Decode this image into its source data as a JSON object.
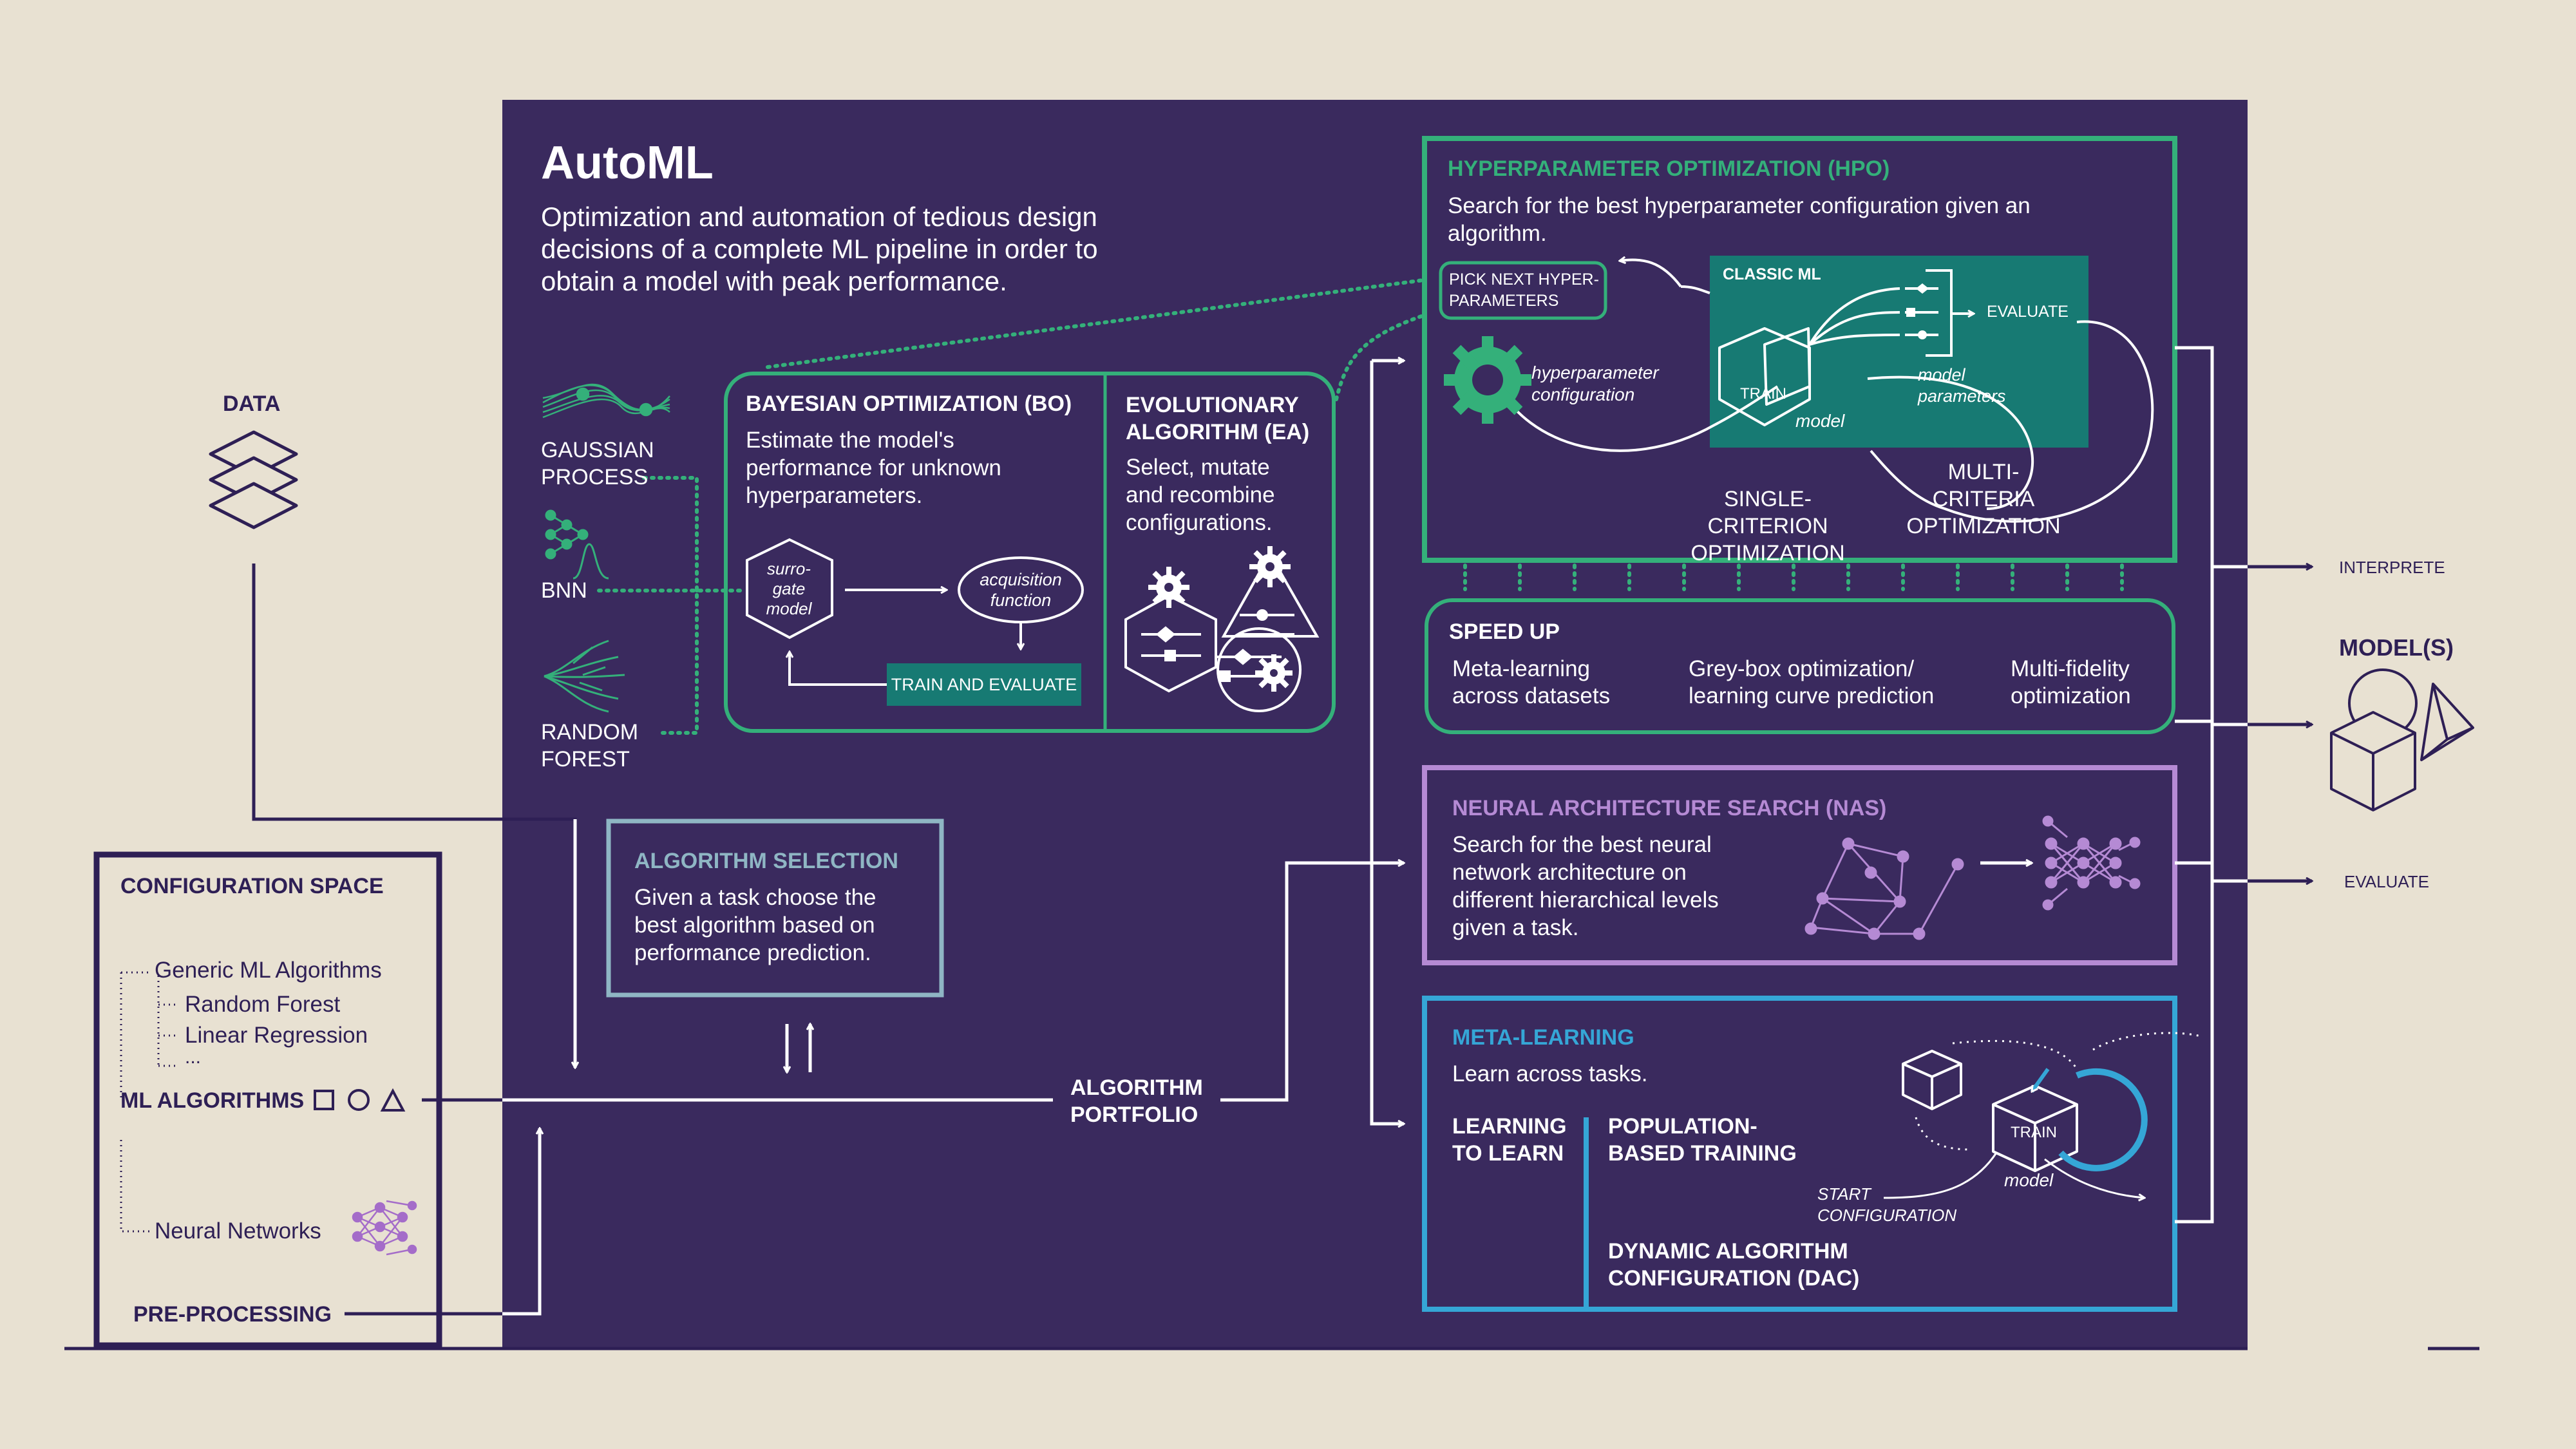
{
  "header": {
    "title": "AutoML",
    "description": "Optimization and automation of tedious design\ndecisions of a complete ML pipeline in order to\nobtain a model with peak performance."
  },
  "data_label": "DATA",
  "surrogates": {
    "gaussian_process": "GAUSSIAN\nPROCESS",
    "bnn": "BNN",
    "random_forest": "RANDOM\nFOREST"
  },
  "bo": {
    "title": "BAYESIAN OPTIMIZATION (BO)",
    "text": "Estimate the model's\nperformance for unknown\nhyperparameters.",
    "surrogate_model": "surro-\ngate\nmodel",
    "acquisition_function": "acquisition\nfunction",
    "train_and_evaluate": "TRAIN AND EVALUATE"
  },
  "ea": {
    "title": "EVOLUTIONARY\nALGORITHM (EA)",
    "text": "Select, mutate\nand recombine\nconfigurations."
  },
  "hpo": {
    "title": "HYPERPARAMETER OPTIMIZATION (HPO)",
    "text": "Search for the best hyperparameter configuration given an\nalgorithm.",
    "pick_next": "PICK NEXT HYPER-\nPARAMETERS",
    "classic_ml": "CLASSIC ML",
    "evaluate": "EVALUATE",
    "hyperparameter_configuration": "hyperparameter\nconfiguration",
    "train": "TRAIN",
    "model": "model",
    "model_parameters": "model\nparameters",
    "multi_criteria": "MULTI-CRITERIA\nOPTIMIZATION",
    "single_criterion": "SINGLE-CRITERION\nOPTIMIZATION"
  },
  "speed_up": {
    "title": "SPEED UP",
    "items": [
      "Meta-learning\nacross datasets",
      "Grey-box optimization/\nlearning curve prediction",
      "Multi-fidelity\noptimization"
    ]
  },
  "nas": {
    "title": "NEURAL ARCHITECTURE SEARCH (NAS)",
    "text": "Search for the best neural\nnetwork architecture on\ndifferent hierarchical levels\ngiven a task."
  },
  "meta": {
    "title": "META-LEARNING",
    "text": "Learn across tasks.",
    "learning_to_learn": "LEARNING\nTO LEARN",
    "population_based": "POPULATION-\nBASED TRAINING",
    "dac": "DYNAMIC ALGORITHM\nCONFIGURATION (DAC)",
    "start_config": "START\nCONFIGURATION",
    "train": "TRAIN",
    "model": "model"
  },
  "algorithm_selection": {
    "title": "ALGORITHM SELECTION",
    "text": "Given a task choose the\nbest algorithm based on\nperformance prediction."
  },
  "algorithm_portfolio": "ALGORITHM\nPORTFOLIO",
  "config_space": {
    "title": "CONFIGURATION SPACE",
    "generic": "Generic ML Algorithms",
    "random_forest": "Random Forest",
    "linear_regression": "Linear Regression",
    "ellipsis": "...",
    "ml_algorithms": "ML ALGORITHMS",
    "neural_networks": "Neural Networks",
    "preprocessing": "PRE-PROCESSING"
  },
  "output": {
    "interprete": "INTERPRETE",
    "models": "MODEL(S)",
    "evaluate": "EVALUATE"
  },
  "colors": {
    "background": "#e8e1d2",
    "panel": "#3a2a5e",
    "dark": "#2e1f55",
    "green": "#34b07a",
    "teal": "#177a73",
    "purple": "#b58ad4",
    "blue": "#35a6d6",
    "grey_blue": "#8fb6c4"
  },
  "icons": [
    "layers-icon",
    "gaussian-process-icon",
    "bnn-icon",
    "random-forest-icon",
    "gear-icon",
    "cube-icon",
    "neural-network-icon",
    "model-shapes-icon"
  ]
}
